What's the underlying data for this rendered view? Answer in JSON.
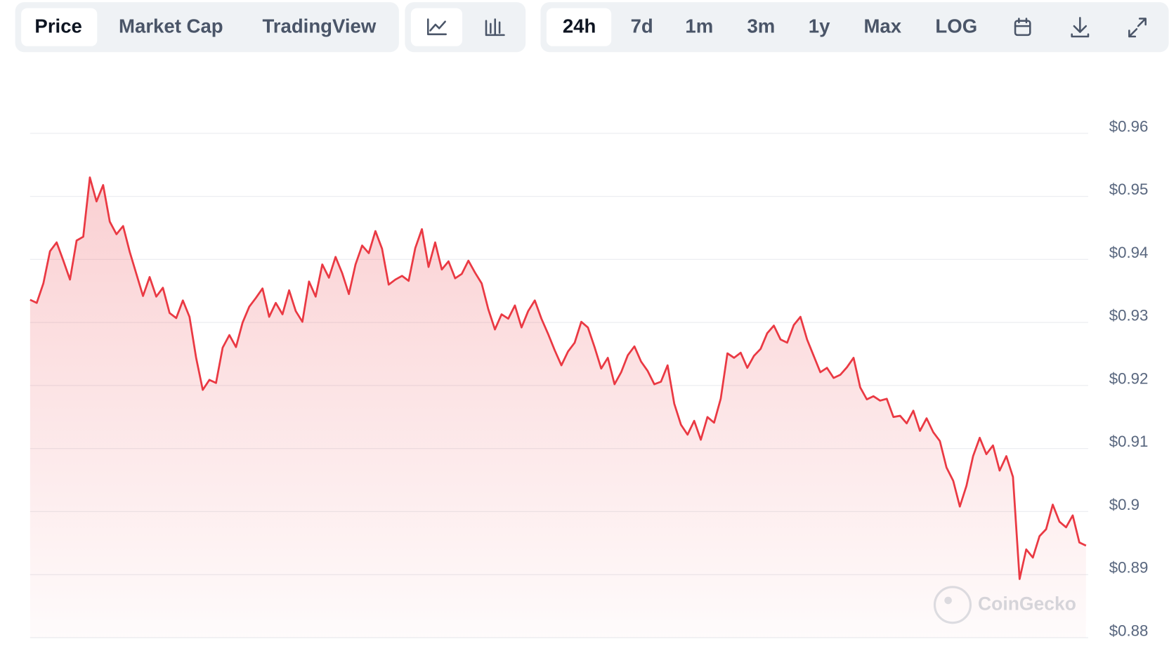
{
  "toolbar": {
    "views": [
      "Price",
      "Market Cap",
      "TradingView"
    ],
    "ranges": [
      "24h",
      "7d",
      "1m",
      "3m",
      "1y",
      "Max",
      "LOG"
    ]
  },
  "watermark": "CoinGecko",
  "chart_data": {
    "type": "line",
    "color": "#ea3943",
    "grid": true,
    "ylim": [
      0.88,
      0.96
    ],
    "yticks": [
      {
        "value": 0.88,
        "label": "$0.88"
      },
      {
        "value": 0.89,
        "label": "$0.89"
      },
      {
        "value": 0.9,
        "label": "$0.9"
      },
      {
        "value": 0.91,
        "label": "$0.91"
      },
      {
        "value": 0.92,
        "label": "$0.92"
      },
      {
        "value": 0.93,
        "label": "$0.93"
      },
      {
        "value": 0.94,
        "label": "$0.94"
      },
      {
        "value": 0.95,
        "label": "$0.95"
      },
      {
        "value": 0.96,
        "label": "$0.96"
      }
    ],
    "values": [
      0.9336,
      0.9331,
      0.9362,
      0.9413,
      0.9427,
      0.9398,
      0.9368,
      0.943,
      0.9436,
      0.953,
      0.9492,
      0.9518,
      0.946,
      0.944,
      0.9453,
      0.9412,
      0.9377,
      0.9342,
      0.9372,
      0.9341,
      0.9355,
      0.9315,
      0.9307,
      0.9335,
      0.9309,
      0.9244,
      0.9193,
      0.9209,
      0.9204,
      0.926,
      0.928,
      0.9261,
      0.93,
      0.9325,
      0.9339,
      0.9354,
      0.9309,
      0.9331,
      0.9313,
      0.9351,
      0.9318,
      0.9301,
      0.9365,
      0.9341,
      0.9392,
      0.9371,
      0.9404,
      0.9378,
      0.9345,
      0.9392,
      0.9422,
      0.941,
      0.9445,
      0.9417,
      0.936,
      0.9368,
      0.9374,
      0.9366,
      0.9418,
      0.9448,
      0.9388,
      0.9427,
      0.9384,
      0.9397,
      0.937,
      0.9377,
      0.9398,
      0.9379,
      0.9362,
      0.9321,
      0.9289,
      0.9313,
      0.9306,
      0.9327,
      0.9292,
      0.9318,
      0.9335,
      0.9306,
      0.9282,
      0.9256,
      0.9232,
      0.9254,
      0.9268,
      0.9301,
      0.9292,
      0.9261,
      0.9227,
      0.9244,
      0.9202,
      0.9221,
      0.9248,
      0.9262,
      0.9238,
      0.9223,
      0.9202,
      0.9206,
      0.9232,
      0.9171,
      0.9138,
      0.9122,
      0.9144,
      0.9114,
      0.915,
      0.9141,
      0.9179,
      0.9251,
      0.9244,
      0.9252,
      0.9228,
      0.9247,
      0.9258,
      0.9283,
      0.9295,
      0.9273,
      0.9268,
      0.9296,
      0.9309,
      0.9273,
      0.9247,
      0.9221,
      0.9228,
      0.9212,
      0.9217,
      0.9229,
      0.9244,
      0.9197,
      0.9178,
      0.9183,
      0.9176,
      0.9179,
      0.915,
      0.9152,
      0.914,
      0.916,
      0.9128,
      0.9148,
      0.9126,
      0.9112,
      0.907,
      0.9049,
      0.9008,
      0.9041,
      0.9088,
      0.9117,
      0.9091,
      0.9105,
      0.9065,
      0.9088,
      0.9055,
      0.8893,
      0.894,
      0.8927,
      0.8961,
      0.8972,
      0.9011,
      0.8984,
      0.8975,
      0.8994,
      0.8951,
      0.8946
    ]
  }
}
